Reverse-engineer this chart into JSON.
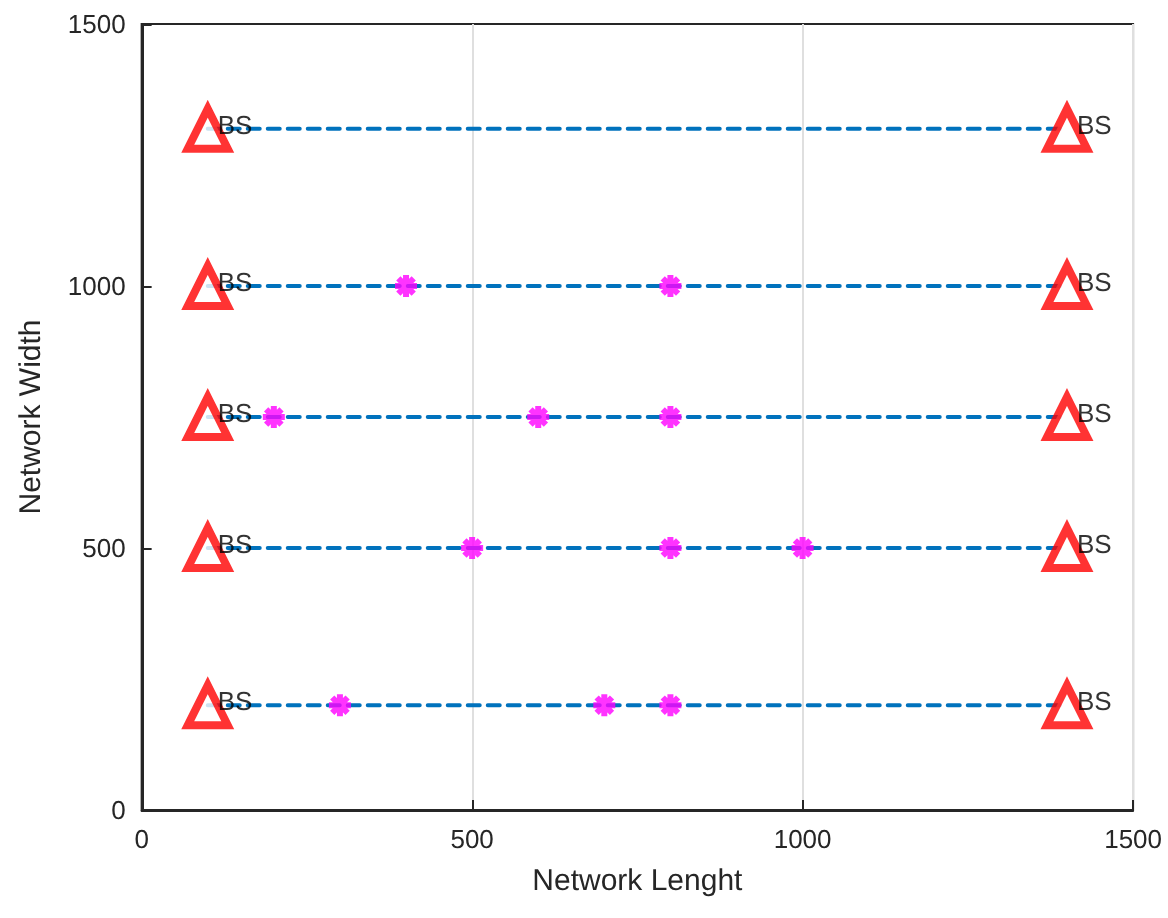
{
  "chart_data": {
    "type": "scatter",
    "xlabel": "Network Lenght",
    "ylabel": "Network Width",
    "xlim": [
      0,
      1500
    ],
    "xticks": [
      0,
      500,
      1000,
      1500
    ],
    "ylim": [
      0,
      1500
    ],
    "yticks": [
      0,
      500,
      1000,
      1500
    ],
    "grid": "x",
    "series": [
      {
        "type": "line",
        "x": [
          100,
          1400
        ],
        "values": [
          1300,
          1300
        ],
        "color": "#0072bd",
        "line_style": "dashed",
        "marker": "none"
      },
      {
        "type": "line",
        "x": [
          100,
          1400
        ],
        "values": [
          1000,
          1000
        ],
        "color": "#0072bd",
        "line_style": "dashed",
        "marker": "none"
      },
      {
        "type": "line",
        "x": [
          100,
          1400
        ],
        "values": [
          750,
          750
        ],
        "color": "#0072bd",
        "line_style": "dashed",
        "marker": "none"
      },
      {
        "type": "line",
        "x": [
          100,
          1400
        ],
        "values": [
          500,
          500
        ],
        "color": "#0072bd",
        "line_style": "dashed",
        "marker": "none"
      },
      {
        "type": "line",
        "x": [
          100,
          1400
        ],
        "values": [
          200,
          200
        ],
        "color": "#0072bd",
        "line_style": "dashed",
        "marker": "none"
      },
      {
        "type": "scatter",
        "x": [
          100,
          1400,
          100,
          1400,
          100,
          1400,
          100,
          1400,
          100,
          1400
        ],
        "values": [
          1300,
          1300,
          1000,
          1000,
          750,
          750,
          500,
          500,
          200,
          200
        ],
        "color": "#ff0000",
        "marker": "triangle",
        "value_labels": [
          "BS",
          "BS",
          "BS",
          "BS",
          "BS",
          "BS",
          "BS",
          "BS",
          "BS",
          "BS"
        ]
      },
      {
        "type": "scatter",
        "x": [
          400,
          800,
          200,
          600,
          800,
          500,
          800,
          1000,
          300,
          700,
          800
        ],
        "values": [
          1000,
          1000,
          750,
          750,
          750,
          500,
          500,
          500,
          200,
          200,
          200
        ],
        "color": "#ff00ff",
        "marker": "cross"
      }
    ]
  }
}
